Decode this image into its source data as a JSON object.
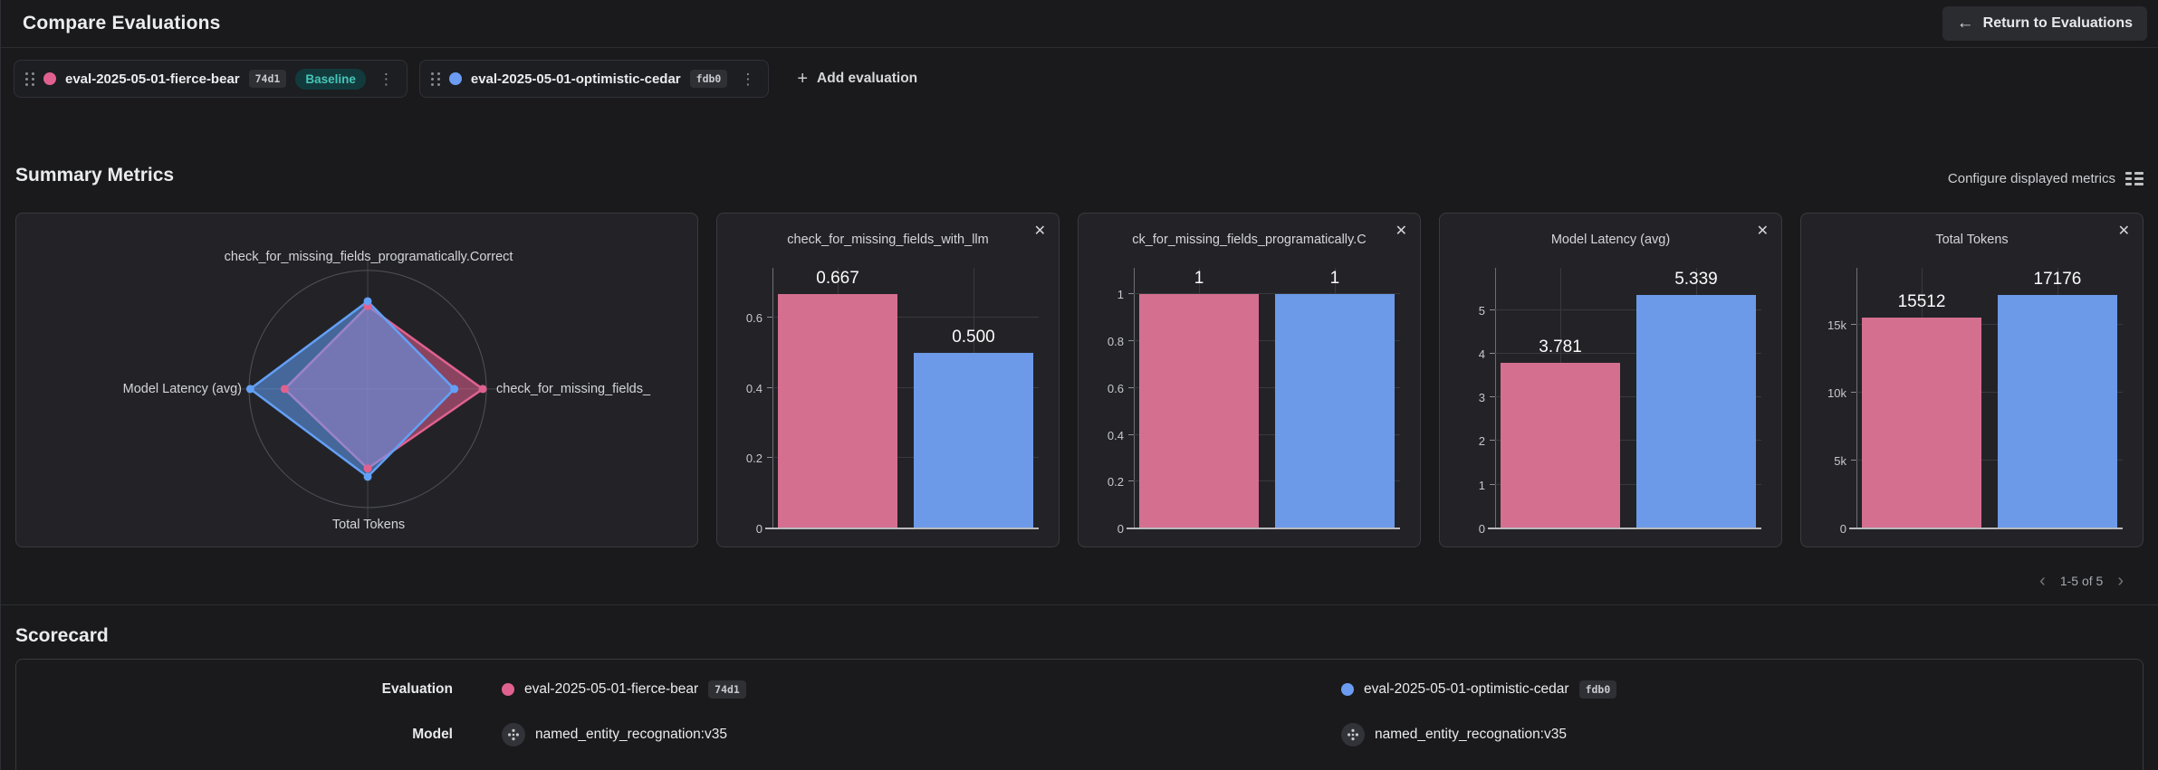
{
  "header": {
    "title": "Compare Evaluations",
    "return_button": "Return to Evaluations"
  },
  "icons": {
    "back_arrow": "←",
    "add": "+",
    "close": "✕",
    "kebab": "⋮",
    "prev": "‹",
    "next": "›"
  },
  "evaluations": [
    {
      "name": "eval-2025-05-01-fierce-bear",
      "id": "74d1",
      "color": "#e0618f",
      "baseline_label": "Baseline"
    },
    {
      "name": "eval-2025-05-01-optimistic-cedar",
      "id": "fdb0",
      "color": "#6b9cf2"
    }
  ],
  "add_evaluation_label": "Add evaluation",
  "summary": {
    "title": "Summary Metrics",
    "configure_label": "Configure displayed metrics",
    "pagination": "1-5 of 5"
  },
  "chart_data": [
    {
      "type": "radar",
      "axes": [
        {
          "position": "top",
          "label": "check_for_missing_fields_programatically.Correct"
        },
        {
          "position": "right",
          "label": "check_for_missing_fields_"
        },
        {
          "position": "bottom",
          "label": "Total Tokens"
        },
        {
          "position": "left",
          "label": "Model Latency (avg)"
        }
      ],
      "series": [
        {
          "name": "eval-2025-05-01-fierce-bear",
          "color": "#e0618f",
          "values": [
            1,
            0.667,
            15512,
            3.781
          ],
          "fractions": [
            0.7,
            0.97,
            0.67,
            0.7
          ]
        },
        {
          "name": "eval-2025-05-01-optimistic-cedar",
          "color": "#63a0f7",
          "values": [
            1,
            0.5,
            17176,
            5.339
          ],
          "fractions": [
            0.74,
            0.73,
            0.74,
            0.99
          ]
        }
      ]
    },
    {
      "type": "bar",
      "title": "check_for_missing_fields_with_llm",
      "ymax": 0.727,
      "yticks": [
        {
          "value": 0,
          "label": "0"
        },
        {
          "value": 0.2,
          "label": "0.2"
        },
        {
          "value": 0.4,
          "label": "0.4"
        },
        {
          "value": 0.6,
          "label": "0.6"
        }
      ],
      "series": [
        {
          "name": "eval-2025-05-01-fierce-bear",
          "color": "#d56f90",
          "value": 0.667,
          "label": "0.667"
        },
        {
          "name": "eval-2025-05-01-optimistic-cedar",
          "color": "#6c9ae9",
          "value": 0.5,
          "label": "0.500"
        }
      ]
    },
    {
      "type": "bar",
      "title": "ck_for_missing_fields_programatically.C",
      "ymax": 1.09,
      "yticks": [
        {
          "value": 0,
          "label": "0"
        },
        {
          "value": 0.2,
          "label": "0.2"
        },
        {
          "value": 0.4,
          "label": "0.4"
        },
        {
          "value": 0.6,
          "label": "0.6"
        },
        {
          "value": 0.8,
          "label": "0.8"
        },
        {
          "value": 1,
          "label": "1"
        }
      ],
      "series": [
        {
          "name": "eval-2025-05-01-fierce-bear",
          "color": "#d56f90",
          "value": 1,
          "label": "1"
        },
        {
          "name": "eval-2025-05-01-optimistic-cedar",
          "color": "#6c9ae9",
          "value": 1,
          "label": "1"
        }
      ]
    },
    {
      "type": "bar",
      "title": "Model Latency (avg)",
      "ymax": 5.84,
      "yticks": [
        {
          "value": 0,
          "label": "0"
        },
        {
          "value": 1,
          "label": "1"
        },
        {
          "value": 2,
          "label": "2"
        },
        {
          "value": 3,
          "label": "3"
        },
        {
          "value": 4,
          "label": "4"
        },
        {
          "value": 5,
          "label": "5"
        }
      ],
      "series": [
        {
          "name": "eval-2025-05-01-fierce-bear",
          "color": "#d56f90",
          "value": 3.781,
          "label": "3.781"
        },
        {
          "name": "eval-2025-05-01-optimistic-cedar",
          "color": "#6c9ae9",
          "value": 5.339,
          "label": "5.339"
        }
      ]
    },
    {
      "type": "bar",
      "title": "Total Tokens",
      "ymax": 18800,
      "yticks": [
        {
          "value": 0,
          "label": "0"
        },
        {
          "value": 5000,
          "label": "5k"
        },
        {
          "value": 10000,
          "label": "10k"
        },
        {
          "value": 15000,
          "label": "15k"
        }
      ],
      "series": [
        {
          "name": "eval-2025-05-01-fierce-bear",
          "color": "#d56f90",
          "value": 15512,
          "label": "15512"
        },
        {
          "name": "eval-2025-05-01-optimistic-cedar",
          "color": "#6c9ae9",
          "value": 17176,
          "label": "17176"
        }
      ]
    }
  ],
  "scorecard": {
    "title": "Scorecard",
    "evaluation_label": "Evaluation",
    "model_label": "Model",
    "models": [
      "named_entity_recognation:v35",
      "named_entity_recognation:v35"
    ]
  }
}
